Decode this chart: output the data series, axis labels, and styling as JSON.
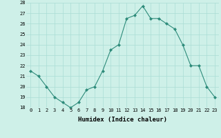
{
  "x": [
    0,
    1,
    2,
    3,
    4,
    5,
    6,
    7,
    8,
    9,
    10,
    11,
    12,
    13,
    14,
    15,
    16,
    17,
    18,
    19,
    20,
    21,
    22,
    23
  ],
  "y": [
    21.5,
    21.0,
    20.0,
    19.0,
    18.5,
    18.0,
    18.5,
    19.7,
    20.0,
    21.5,
    23.5,
    24.0,
    26.5,
    26.8,
    27.7,
    26.5,
    26.5,
    26.0,
    25.5,
    24.0,
    22.0,
    22.0,
    20.0,
    19.0
  ],
  "line_color": "#2d8b7a",
  "marker": "D",
  "marker_size": 2,
  "bg_color": "#cef0e8",
  "grid_color": "#aaddd4",
  "xlabel": "Humidex (Indice chaleur)",
  "ylim": [
    18,
    28
  ],
  "xlim": [
    -0.5,
    23.5
  ],
  "yticks": [
    18,
    19,
    20,
    21,
    22,
    23,
    24,
    25,
    26,
    27,
    28
  ],
  "xticks": [
    0,
    1,
    2,
    3,
    4,
    5,
    6,
    7,
    8,
    9,
    10,
    11,
    12,
    13,
    14,
    15,
    16,
    17,
    18,
    19,
    20,
    21,
    22,
    23
  ],
  "tick_fontsize": 5,
  "xlabel_fontsize": 6.5,
  "linewidth": 0.8
}
